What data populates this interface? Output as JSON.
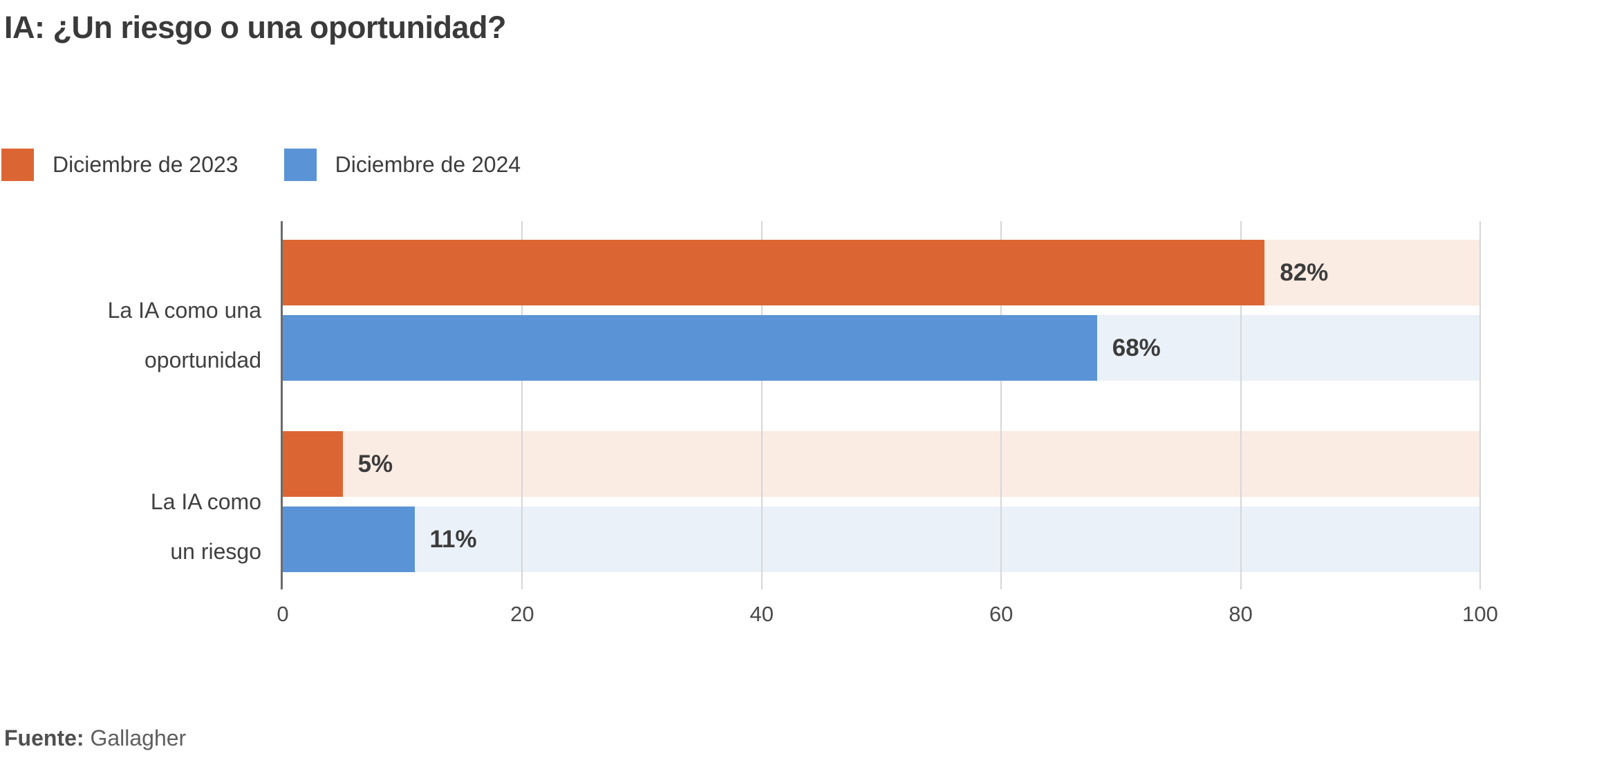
{
  "title": "IA: ¿Un riesgo o una oportunidad?",
  "legend": [
    {
      "label": "Diciembre de 2023",
      "color": "#DC6633"
    },
    {
      "label": "Diciembre de 2024",
      "color": "#5B94D6"
    }
  ],
  "source": {
    "label": "Fuente:",
    "value": "Gallagher"
  },
  "colors": {
    "series_2023": "#DC6633",
    "series_2024": "#5B94D6",
    "track_2023": "#FAEBE3",
    "track_2024": "#EBF1F9",
    "gridline": "#D6D6D6",
    "axis": "#6B6B6B",
    "text": "#3C3C3C"
  },
  "chart_data": {
    "type": "bar",
    "orientation": "horizontal",
    "title": "IA: ¿Un riesgo o una oportunidad?",
    "categories": [
      "La IA como una oportunidad",
      "La IA como un riesgo"
    ],
    "category_lines": [
      [
        "La IA como una",
        "oportunidad"
      ],
      [
        "La IA como",
        "un riesgo"
      ]
    ],
    "series": [
      {
        "name": "Diciembre de 2023",
        "color": "#DC6633",
        "track_color": "#FAEBE3",
        "values": [
          82,
          5
        ],
        "labels": [
          "82%",
          "5%"
        ]
      },
      {
        "name": "Diciembre de 2024",
        "color": "#5B94D6",
        "track_color": "#EBF1F9",
        "values": [
          68,
          11
        ],
        "labels": [
          "68%",
          "11%"
        ]
      }
    ],
    "unit": "%",
    "xlim": [
      0,
      100
    ],
    "ticks": [
      0,
      20,
      40,
      60,
      80,
      100
    ],
    "grid": "on",
    "legend_position": "top",
    "source": "Fuente: Gallagher"
  }
}
